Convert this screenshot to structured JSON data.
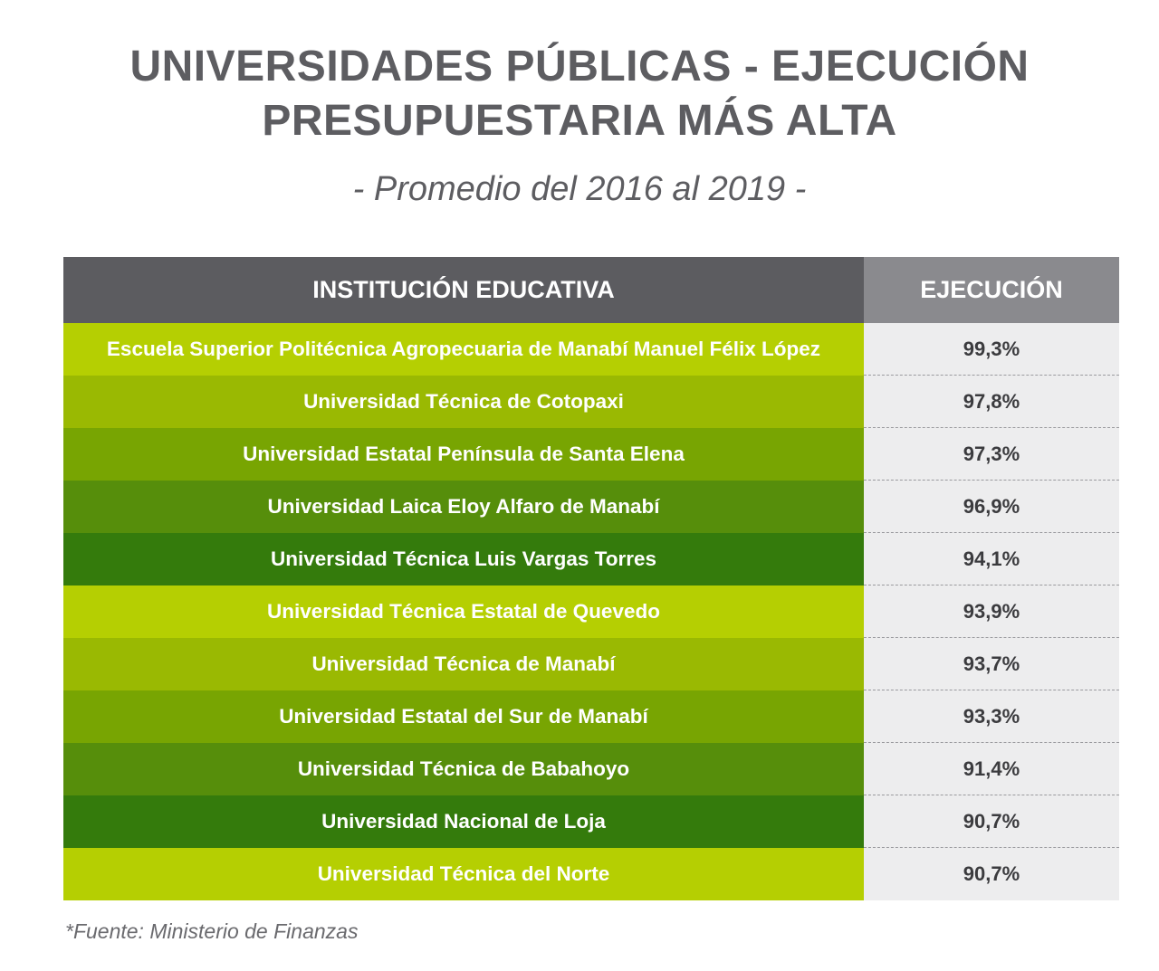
{
  "title_line1": "UNIVERSIDADES PÚBLICAS - EJECUCIÓN",
  "title_line2": "PRESUPUESTARIA MÁS ALTA",
  "subtitle": "- Promedio del 2016 al 2019 -",
  "source": "*Fuente: Ministerio de Finanzas",
  "colors": {
    "shade_1": "#b5cf02",
    "shade_2": "#9ab902",
    "shade_3": "#78a502",
    "shade_4": "#568e0b",
    "shade_5": "#347b0c"
  },
  "chart_data": {
    "type": "table",
    "columns": [
      "INSTITUCIÓN EDUCATIVA",
      "EJECUCIÓN"
    ],
    "rows": [
      {
        "institution": "Escuela Superior Politécnica Agropecuaria de Manabí Manuel Félix López",
        "value": "99,3%"
      },
      {
        "institution": "Universidad Técnica de Cotopaxi",
        "value": "97,8%"
      },
      {
        "institution": "Universidad Estatal Península de Santa Elena",
        "value": "97,3%"
      },
      {
        "institution": "Universidad Laica Eloy Alfaro de Manabí",
        "value": "96,9%"
      },
      {
        "institution": "Universidad Técnica Luis Vargas Torres",
        "value": "94,1%"
      },
      {
        "institution": "Universidad Técnica Estatal de Quevedo",
        "value": "93,9%"
      },
      {
        "institution": "Universidad Técnica de Manabí",
        "value": "93,7%"
      },
      {
        "institution": "Universidad Estatal del Sur de Manabí",
        "value": "93,3%"
      },
      {
        "institution": "Universidad Técnica de Babahoyo",
        "value": "91,4%"
      },
      {
        "institution": "Universidad Nacional de Loja",
        "value": "90,7%"
      },
      {
        "institution": "Universidad Técnica del Norte",
        "value": "90,7%"
      }
    ]
  }
}
